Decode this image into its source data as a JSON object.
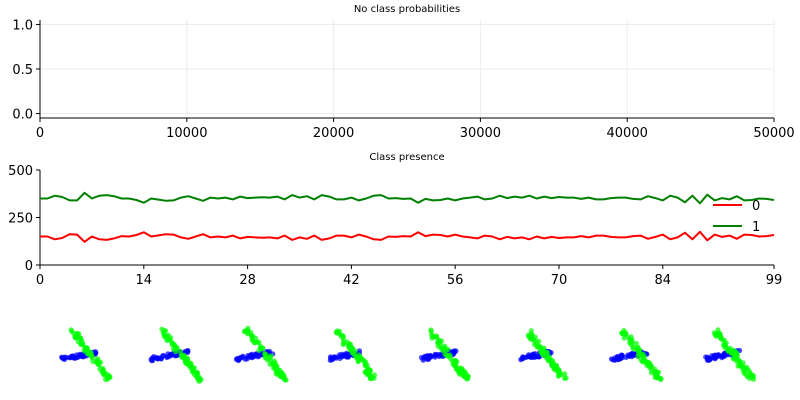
{
  "chart_data": [
    {
      "type": "line",
      "title": "No class probabilities",
      "xlabel": "",
      "ylabel": "",
      "xlim": [
        0,
        50000
      ],
      "ylim": [
        -0.05,
        1.05
      ],
      "grid": true,
      "xticks": [
        0,
        10000,
        20000,
        30000,
        40000,
        50000
      ],
      "xtick_labels": [
        "0",
        "10000",
        "20000",
        "30000",
        "40000",
        "50000"
      ],
      "yticks": [
        0.0,
        0.5,
        1.0
      ],
      "ytick_labels": [
        "0.0",
        "0.5",
        "1.0"
      ],
      "series": []
    },
    {
      "type": "line",
      "title": "Class presence",
      "xlabel": "",
      "ylabel": "",
      "xlim": [
        0,
        99
      ],
      "ylim": [
        0,
        500
      ],
      "grid": false,
      "xticks": [
        0,
        14,
        28,
        42,
        56,
        70,
        84,
        99
      ],
      "xtick_labels": [
        "0",
        "14",
        "28",
        "42",
        "56",
        "70",
        "84",
        "99"
      ],
      "yticks": [
        0,
        250,
        500
      ],
      "ytick_labels": [
        "0",
        "250",
        "500"
      ],
      "legend_position": "center-right",
      "series": [
        {
          "name": "0",
          "color": "#ff0000",
          "values": [
            150,
            150,
            135,
            142,
            162,
            160,
            122,
            150,
            135,
            132,
            140,
            152,
            150,
            158,
            172,
            150,
            156,
            162,
            160,
            145,
            138,
            150,
            162,
            145,
            150,
            145,
            155,
            140,
            148,
            145,
            143,
            145,
            140,
            155,
            132,
            145,
            138,
            155,
            132,
            140,
            155,
            155,
            145,
            160,
            150,
            135,
            132,
            150,
            148,
            152,
            150,
            172,
            152,
            160,
            158,
            150,
            160,
            150,
            145,
            140,
            155,
            150,
            135,
            148,
            140,
            145,
            135,
            150,
            140,
            148,
            142,
            145,
            145,
            152,
            145,
            155,
            155,
            148,
            145,
            145,
            152,
            155,
            138,
            148,
            160,
            135,
            145,
            170,
            135,
            175,
            130,
            160,
            148,
            155,
            138,
            160,
            158,
            150,
            152,
            158
          ]
        },
        {
          "name": "1",
          "color": "#008000",
          "values": [
            350,
            350,
            365,
            358,
            340,
            340,
            380,
            350,
            365,
            368,
            362,
            350,
            350,
            342,
            328,
            350,
            344,
            338,
            340,
            355,
            362,
            350,
            338,
            355,
            350,
            355,
            345,
            360,
            352,
            355,
            357,
            355,
            360,
            345,
            368,
            355,
            362,
            345,
            368,
            360,
            345,
            345,
            355,
            340,
            350,
            365,
            368,
            350,
            352,
            348,
            350,
            328,
            348,
            340,
            342,
            350,
            340,
            350,
            355,
            360,
            345,
            350,
            365,
            352,
            360,
            355,
            365,
            350,
            360,
            352,
            358,
            355,
            355,
            348,
            355,
            345,
            345,
            352,
            355,
            355,
            348,
            345,
            362,
            352,
            340,
            365,
            355,
            330,
            365,
            325,
            370,
            340,
            352,
            345,
            362,
            340,
            342,
            350,
            348,
            342
          ]
        }
      ]
    }
  ],
  "thumbnails": {
    "count": 8,
    "blue": "#0000ff",
    "green": "#00ff00"
  }
}
